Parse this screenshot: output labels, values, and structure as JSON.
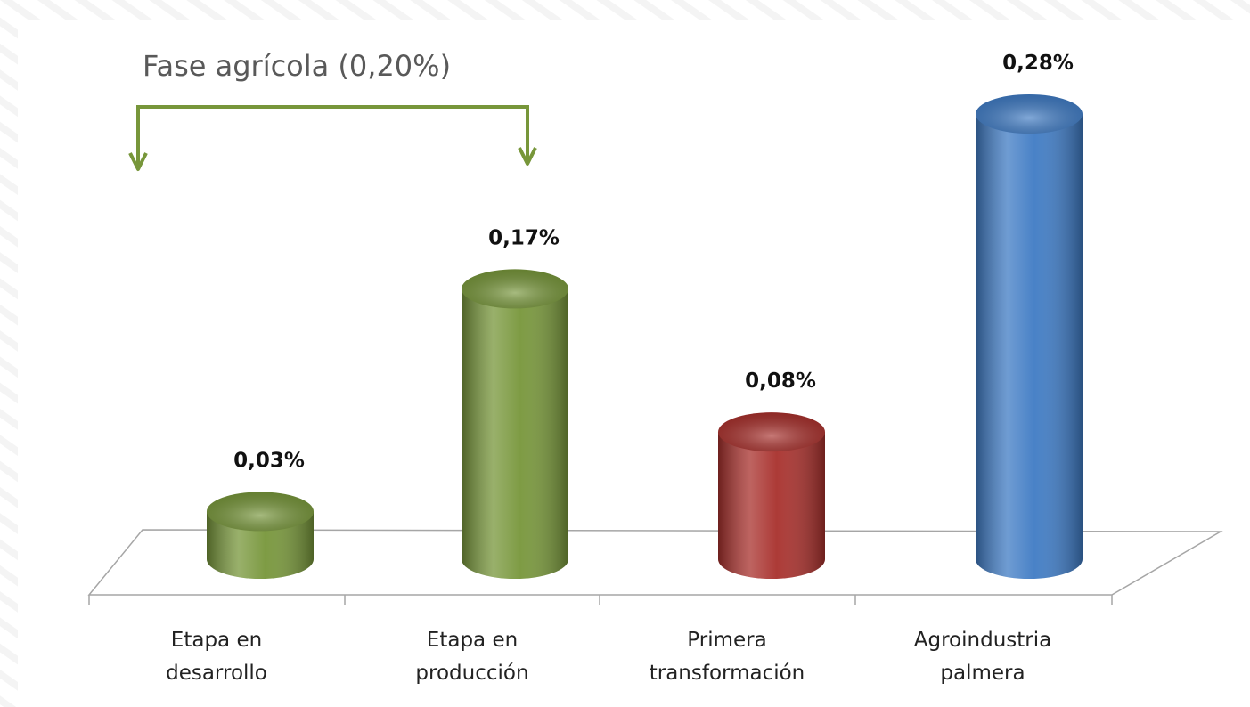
{
  "chart_data": {
    "type": "bar",
    "categories": [
      "Etapa en desarrollo",
      "Etapa en producción",
      "Primera transformación",
      "Agroindustria palmera"
    ],
    "values": [
      0.03,
      0.17,
      0.08,
      0.28
    ],
    "value_labels": [
      "0,03%",
      "0,17%",
      "0,08%",
      "0,28%"
    ],
    "colors": [
      "#77963a",
      "#77963a",
      "#a8302c",
      "#3f7bc4"
    ],
    "annotation": "Fase agrícola (0,20%)"
  }
}
